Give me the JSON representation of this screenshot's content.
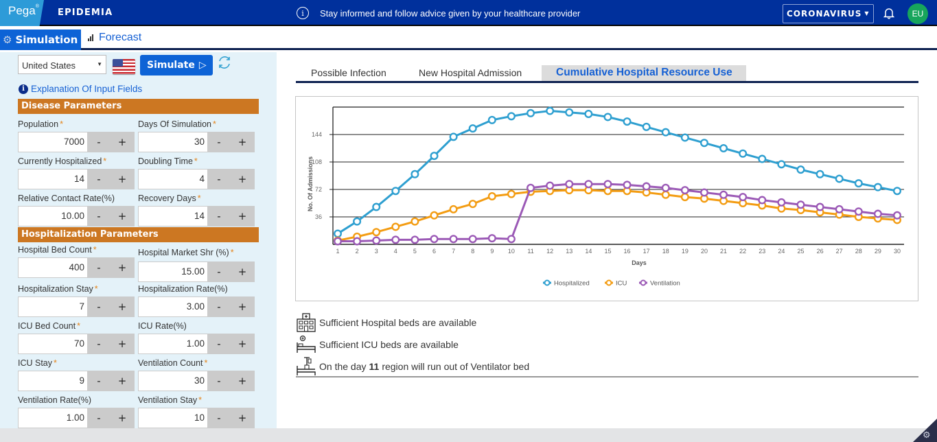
{
  "header": {
    "brand": "Pega",
    "app_name": "EPIDEMIA",
    "notice": "Stay informed and follow advice given by your healthcare provider",
    "topic": "CORONAVIRUS",
    "avatar_initials": "EU"
  },
  "nav": {
    "tabs": [
      {
        "label": "Simulation",
        "icon": "gear-icon",
        "active": true
      },
      {
        "label": "Forecast",
        "icon": "bar-chart-icon",
        "active": false
      }
    ]
  },
  "sidebar": {
    "country": "United States",
    "flag": "us-flag-icon",
    "simulate_label": "Simulate",
    "explain_link": "Explanation Of Input Fields",
    "sections": [
      {
        "title": "Disease Parameters",
        "fields": [
          {
            "label": "Population",
            "required": true,
            "value": "7000"
          },
          {
            "label": "Days Of Simulation",
            "required": true,
            "value": "30"
          },
          {
            "label": "Currently Hospitalized",
            "required": true,
            "value": "14"
          },
          {
            "label": "Doubling Time",
            "required": true,
            "value": "4"
          },
          {
            "label": "Relative Contact Rate(%)",
            "required": false,
            "value": "10.00"
          },
          {
            "label": "Recovery Days",
            "required": true,
            "value": "14"
          }
        ]
      },
      {
        "title": "Hospitalization Parameters",
        "fields": [
          {
            "label": "Hospital Bed Count",
            "required": true,
            "value": "400"
          },
          {
            "label": "Hospital Market Shr (%)",
            "required": true,
            "value": "15.00"
          },
          {
            "label": "Hospitalization Stay",
            "required": true,
            "value": "7"
          },
          {
            "label": "Hospitalization Rate(%)",
            "required": false,
            "value": "3.00"
          },
          {
            "label": "ICU Bed Count",
            "required": true,
            "value": "70"
          },
          {
            "label": "ICU Rate(%)",
            "required": false,
            "value": "1.00"
          },
          {
            "label": "ICU Stay",
            "required": true,
            "value": "9"
          },
          {
            "label": "Ventilation Count",
            "required": true,
            "value": "30"
          },
          {
            "label": "Ventilation Rate(%)",
            "required": false,
            "value": "1.00"
          },
          {
            "label": "Ventilation Stay",
            "required": true,
            "value": "10"
          }
        ]
      }
    ],
    "stepper": {
      "minus": "-",
      "plus": "+"
    },
    "required_mark": "*"
  },
  "main": {
    "tabs": [
      {
        "label": "Possible Infection",
        "active": false
      },
      {
        "label": "New Hospital Admission",
        "active": false
      },
      {
        "label": "Cumulative Hospital Resource Use",
        "active": true
      }
    ],
    "status": [
      {
        "icon": "hospital-building-icon",
        "text": "Sufficient Hospital beds are available"
      },
      {
        "icon": "icu-bed-icon",
        "text": "Sufficient ICU beds are available"
      },
      {
        "icon": "ventilator-bed-icon",
        "prefix": "On the day",
        "day": "11",
        "suffix": "region will run out of Ventilator bed"
      }
    ]
  },
  "chart_data": {
    "type": "line",
    "title": "",
    "xlabel": "Days",
    "ylabel": "No. Of Admissions",
    "x": [
      1,
      2,
      3,
      4,
      5,
      6,
      7,
      8,
      9,
      10,
      11,
      12,
      13,
      14,
      15,
      16,
      17,
      18,
      19,
      20,
      21,
      22,
      23,
      24,
      25,
      26,
      27,
      28,
      29,
      30
    ],
    "ylim": [
      0,
      180
    ],
    "yticks": [
      36,
      72,
      108,
      144
    ],
    "grid": true,
    "legend_position": "bottom-center",
    "series": [
      {
        "name": "Hospitalized",
        "color": "#2e9fd0",
        "values": [
          14,
          30,
          49,
          70,
          92,
          116,
          141,
          152,
          163,
          168,
          172,
          175,
          173,
          171,
          167,
          161,
          154,
          147,
          140,
          133,
          126,
          119,
          112,
          105,
          98,
          92,
          86,
          80,
          75,
          70
        ]
      },
      {
        "name": "ICU",
        "color": "#f39c12",
        "values": [
          5,
          10,
          16,
          23,
          30,
          38,
          46,
          53,
          63,
          66,
          69,
          70,
          71,
          71,
          70,
          70,
          68,
          65,
          62,
          60,
          57,
          54,
          51,
          47,
          45,
          42,
          39,
          36,
          34,
          32
        ]
      },
      {
        "name": "Ventilation",
        "color": "#9b59b6",
        "values": [
          4,
          4,
          5,
          6,
          6,
          7,
          7,
          7,
          8,
          7,
          74,
          77,
          79,
          79,
          79,
          78,
          76,
          74,
          71,
          68,
          65,
          62,
          58,
          55,
          52,
          49,
          46,
          43,
          40,
          38
        ]
      }
    ]
  }
}
